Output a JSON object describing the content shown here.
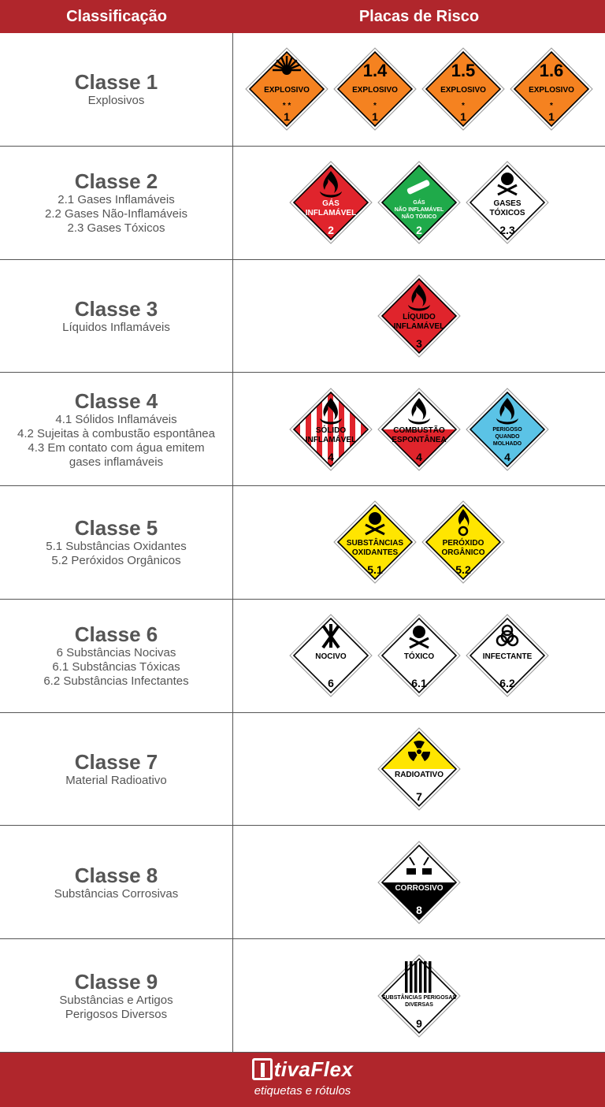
{
  "header": {
    "col1": "Classificação",
    "col2": "Placas de Risco"
  },
  "classes": [
    {
      "title": "Classe 1",
      "desc": [
        "Explosivos"
      ],
      "placards": [
        {
          "icon": "exploding-bomb-icon",
          "top": "",
          "label1": "EXPLOSIVO",
          "label2": "",
          "label3": "",
          "mark": "* *",
          "num": "1",
          "bg": "#f58220",
          "fg": "#000"
        },
        {
          "icon": "",
          "top": "1.4",
          "label1": "EXPLOSIVO",
          "label2": "",
          "label3": "",
          "mark": "*",
          "num": "1",
          "bg": "#f58220",
          "fg": "#000"
        },
        {
          "icon": "",
          "top": "1.5",
          "label1": "EXPLOSIVO",
          "label2": "",
          "label3": "",
          "mark": "*",
          "num": "1",
          "bg": "#f58220",
          "fg": "#000"
        },
        {
          "icon": "",
          "top": "1.6",
          "label1": "EXPLOSIVO",
          "label2": "",
          "label3": "",
          "mark": "*",
          "num": "1",
          "bg": "#f58220",
          "fg": "#000"
        }
      ]
    },
    {
      "title": "Classe 2",
      "desc": [
        "2.1 Gases Inflamáveis",
        "2.2 Gases Não-Inflamáveis",
        "2.3 Gases Tóxicos"
      ],
      "placards": [
        {
          "icon": "flame-icon",
          "top": "",
          "label1": "GÁS",
          "label2": "INFLAMÁVEL",
          "label3": "",
          "mark": "",
          "num": "2",
          "bg": "#e0242c",
          "fg": "#fff"
        },
        {
          "icon": "gas-cylinder-icon",
          "top": "",
          "label1": "GÁS",
          "label2": "NÃO INFLAMÁVEL",
          "label3": "NÃO TÓXICO",
          "mark": "",
          "num": "2",
          "bg": "#1faa4a",
          "fg": "#fff"
        },
        {
          "icon": "skull-crossbones-icon",
          "top": "",
          "label1": "GASES",
          "label2": "TÓXICOS",
          "label3": "",
          "mark": "",
          "num": "2.3",
          "bg": "#ffffff",
          "fg": "#000"
        }
      ]
    },
    {
      "title": "Classe 3",
      "desc": [
        "Líquidos Inflamáveis"
      ],
      "placards": [
        {
          "icon": "flame-icon",
          "top": "",
          "label1": "LÍQUIDO",
          "label2": "INFLAMÁVEL",
          "label3": "",
          "mark": "",
          "num": "3",
          "bg": "#e0242c",
          "fg": "#000"
        }
      ]
    },
    {
      "title": "Classe 4",
      "desc": [
        "4.1 Sólidos Inflamáveis",
        "4.2 Sujeitas à combustão espontânea",
        "4.3 Em contato com água emitem",
        "gases inflamáveis"
      ],
      "placards": [
        {
          "icon": "flame-icon",
          "top": "",
          "label1": "SÓLIDO",
          "label2": "INFLAMÁVEL",
          "label3": "",
          "mark": "",
          "num": "4",
          "bg": "stripes",
          "fg": "#000"
        },
        {
          "icon": "flame-icon",
          "top": "",
          "label1": "COMBUSTÃO",
          "label2": "ESPONTÂNEA",
          "label3": "",
          "mark": "",
          "num": "4",
          "bg": "halfred",
          "fg": "#000"
        },
        {
          "icon": "flame-icon",
          "top": "",
          "label1": "PERIGOSO",
          "label2": "QUANDO",
          "label3": "MOLHADO",
          "mark": "",
          "num": "4",
          "bg": "#5bc3e6",
          "fg": "#000"
        }
      ]
    },
    {
      "title": "Classe 5",
      "desc": [
        "5.1 Substâncias Oxidantes",
        "5.2 Peróxidos Orgânicos"
      ],
      "placards": [
        {
          "icon": "skull-crossbones-icon",
          "top": "",
          "label1": "SUBSTÂNCIAS",
          "label2": "OXIDANTES",
          "label3": "",
          "mark": "",
          "num": "5.1",
          "bg": "#ffe500",
          "fg": "#000"
        },
        {
          "icon": "flame-over-circle-icon",
          "top": "",
          "label1": "PERÓXIDO",
          "label2": "ORGÂNICO",
          "label3": "",
          "mark": "",
          "num": "5.2",
          "bg": "#ffe500",
          "fg": "#000"
        }
      ]
    },
    {
      "title": "Classe 6",
      "desc": [
        "6 Substâncias Nocivas",
        "6.1 Substâncias Tóxicas",
        "6.2 Substâncias Infectantes"
      ],
      "placards": [
        {
          "icon": "crossed-wheat-icon",
          "top": "",
          "label1": "NOCIVO",
          "label2": "",
          "label3": "",
          "mark": "",
          "num": "6",
          "bg": "#ffffff",
          "fg": "#000"
        },
        {
          "icon": "skull-crossbones-icon",
          "top": "",
          "label1": "TÓXICO",
          "label2": "",
          "label3": "",
          "mark": "",
          "num": "6.1",
          "bg": "#ffffff",
          "fg": "#000"
        },
        {
          "icon": "biohazard-icon",
          "top": "",
          "label1": "INFECTANTE",
          "label2": "",
          "label3": "",
          "mark": "",
          "num": "6.2",
          "bg": "#ffffff",
          "fg": "#000"
        }
      ]
    },
    {
      "title": "Classe 7",
      "desc": [
        "Material Radioativo"
      ],
      "placards": [
        {
          "icon": "radiation-icon",
          "top": "",
          "label1": "RADIOATIVO",
          "label2": "",
          "label3": "",
          "mark": "",
          "num": "7",
          "bg": "halfyellow",
          "fg": "#000"
        }
      ]
    },
    {
      "title": "Classe 8",
      "desc": [
        "Substâncias Corrosivas"
      ],
      "placards": [
        {
          "icon": "corrosion-icon",
          "top": "",
          "label1": "CORROSIVO",
          "label2": "",
          "label3": "",
          "mark": "",
          "num": "8",
          "bg": "halfblack",
          "fg": "#fff"
        }
      ]
    },
    {
      "title": "Classe 9",
      "desc": [
        "Substâncias e Artigos",
        "Perigosos Diversos"
      ],
      "placards": [
        {
          "icon": "stripes-icon",
          "top": "",
          "label1": "SUBSTÂNCIAS PERIGOSAS",
          "label2": "DIVERSAS",
          "label3": "",
          "mark": "",
          "num": "9",
          "bg": "class9",
          "fg": "#000"
        }
      ]
    }
  ],
  "footer": {
    "brand_rest": "tivaFlex",
    "tagline": "etiquetas e rótulos"
  },
  "colors": {
    "brand": "#b0262c",
    "text": "#555555"
  }
}
